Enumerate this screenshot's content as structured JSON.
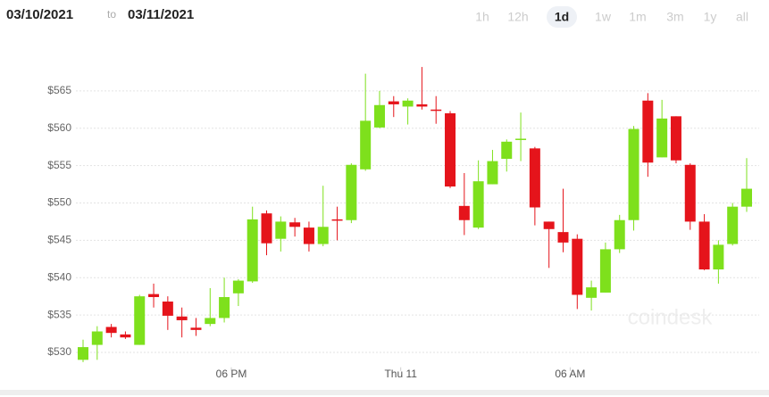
{
  "header": {
    "from": "03/10/2021",
    "to_word": "to",
    "to": "03/11/2021",
    "ranges": [
      "1h",
      "12h",
      "1d",
      "1w",
      "1m",
      "3m",
      "1y",
      "all"
    ],
    "active_range": 2
  },
  "watermark": "coindesk",
  "chart_data": {
    "type": "candlestick",
    "up_color": "#7ee01c",
    "down_color": "#e5141b",
    "grid": true,
    "ylim": [
      528,
      570
    ],
    "yticks": [
      {
        "value": 530,
        "label": "$530"
      },
      {
        "value": 535,
        "label": "$535"
      },
      {
        "value": 540,
        "label": "$540"
      },
      {
        "value": 545,
        "label": "$545"
      },
      {
        "value": 550,
        "label": "$550"
      },
      {
        "value": 555,
        "label": "$555"
      },
      {
        "value": 560,
        "label": "$560"
      },
      {
        "value": 565,
        "label": "$565"
      }
    ],
    "categories": [
      null,
      null,
      null,
      null,
      null,
      null,
      null,
      null,
      null,
      null,
      null,
      "06 PM",
      null,
      null,
      null,
      null,
      null,
      null,
      null,
      null,
      null,
      null,
      null,
      "Thu 11",
      null,
      null,
      null,
      null,
      null,
      null,
      null,
      null,
      null,
      null,
      null,
      "06 AM",
      null,
      null,
      null,
      null,
      null,
      null,
      null,
      null,
      null,
      null,
      null,
      null
    ],
    "open": [
      529,
      531,
      533.4,
      532.4,
      531,
      537.8,
      536.8,
      534.8,
      533.3,
      533.8,
      534.6,
      537.9,
      539.5,
      548.6,
      545.2,
      547.4,
      546.7,
      544.5,
      547.8,
      547.7,
      554.5,
      560.1,
      563.6,
      562.9,
      563.2,
      562.5,
      562,
      549.6,
      546.7,
      552.5,
      555.9,
      558.5,
      557.3,
      547.5,
      546.1,
      545.2,
      537.3,
      538,
      543.8,
      547.7,
      563.7,
      556.1,
      561.6,
      555.1,
      547.5,
      541.1,
      544.5,
      549.5
    ],
    "high": [
      531.7,
      533.5,
      533.8,
      532.8,
      537.7,
      539.2,
      537.5,
      536,
      534.6,
      538.6,
      540,
      539.8,
      549.5,
      549,
      548.2,
      548,
      547.5,
      552.3,
      549.5,
      555.3,
      567.3,
      565,
      564.3,
      564,
      568.2,
      564.3,
      562.3,
      554,
      555.7,
      557.1,
      558.5,
      562.1,
      557.5,
      547.5,
      551.9,
      545.8,
      539.6,
      544.7,
      548.4,
      560.3,
      564.7,
      563.8,
      561.6,
      555.3,
      548.5,
      545,
      550,
      556
    ],
    "low": [
      528.7,
      529,
      532,
      531.8,
      531,
      536,
      533,
      532,
      532.2,
      533.5,
      534,
      536.2,
      539.3,
      543,
      543.5,
      545.5,
      543.5,
      544.2,
      545,
      547.3,
      554.3,
      560,
      561.5,
      560.5,
      562.5,
      560.6,
      552,
      545.7,
      546.5,
      552.5,
      554.2,
      555.6,
      547,
      541.3,
      543.4,
      535.8,
      535.6,
      538,
      543.3,
      546.3,
      553.5,
      556.1,
      555.3,
      546.4,
      541,
      539.2,
      544.3,
      548.8
    ],
    "close": [
      530.7,
      532.8,
      532.6,
      532,
      537.5,
      537.4,
      534.9,
      534.3,
      533,
      534.6,
      537.4,
      539.6,
      547.8,
      544.6,
      547.5,
      546.8,
      544.5,
      546.8,
      547.7,
      555.1,
      561,
      563.1,
      563.2,
      563.7,
      562.9,
      562.4,
      552.2,
      547.7,
      552.9,
      555.6,
      558.2,
      558.6,
      549.4,
      546.5,
      544.7,
      537.7,
      538.7,
      543.8,
      547.7,
      559.9,
      555.4,
      561.3,
      555.7,
      547.5,
      541.1,
      544.4,
      549.5,
      551.9
    ]
  }
}
